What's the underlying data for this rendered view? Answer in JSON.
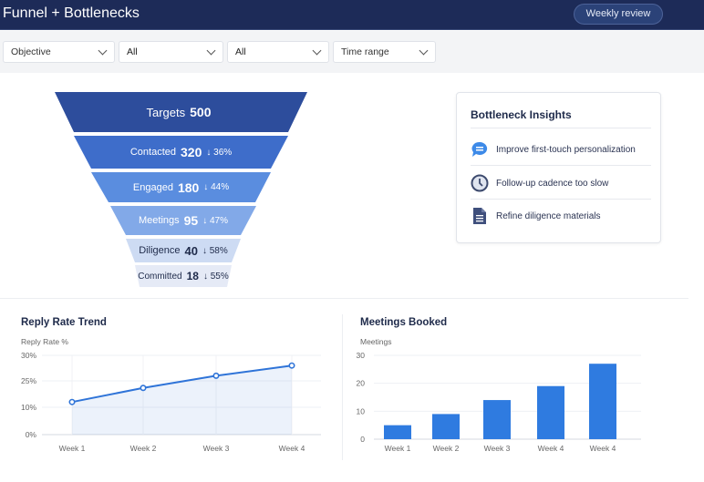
{
  "header": {
    "title": "Funnel + Bottlenecks",
    "weekly_review_label": "Weekly review"
  },
  "filters": [
    {
      "value": "Objective"
    },
    {
      "value": "All"
    },
    {
      "value": "All"
    },
    {
      "value": "Time range"
    }
  ],
  "funnel": [
    {
      "stage": "Targets",
      "count": "500",
      "drop": ""
    },
    {
      "stage": "Contacted",
      "count": "320",
      "drop": "↓ 36%"
    },
    {
      "stage": "Engaged",
      "count": "180",
      "drop": "↓ 44%"
    },
    {
      "stage": "Meetings",
      "count": "95",
      "drop": "↓ 47%"
    },
    {
      "stage": "Diligence",
      "count": "40",
      "drop": "↓ 58%"
    },
    {
      "stage": "Committed",
      "count": "18",
      "drop": "↓ 55%"
    }
  ],
  "insights": {
    "title": "Bottleneck Insights",
    "items": [
      {
        "icon": "chat-bubble-icon",
        "text": "Improve first-touch personalization"
      },
      {
        "icon": "clock-icon",
        "text": "Follow-up cadence too slow"
      },
      {
        "icon": "document-icon",
        "text": "Refine diligence materials"
      }
    ]
  },
  "chart_data": [
    {
      "type": "line",
      "title": "Reply Rate Trend",
      "ylabel": "Reply Rate %",
      "categories": [
        "Week 1",
        "Week 2",
        "Week 3",
        "Week 4"
      ],
      "yticks": [
        "0%",
        "10%",
        "25%",
        "30%"
      ],
      "series": [
        {
          "values": [
            13,
            21,
            26,
            28
          ]
        }
      ],
      "grid": true,
      "color": "#2f74d8"
    },
    {
      "type": "bar",
      "title": "Meetings Booked",
      "ylabel": "Meetings",
      "categories": [
        "Week 1",
        "Week 2",
        "Week 3",
        "Week 4",
        "Week 4"
      ],
      "yticks": [
        "0",
        "10",
        "20",
        "30"
      ],
      "values": [
        5,
        9,
        14,
        19,
        27
      ],
      "ylim": [
        0,
        30
      ],
      "grid": true,
      "color": "#2f7be0"
    }
  ]
}
